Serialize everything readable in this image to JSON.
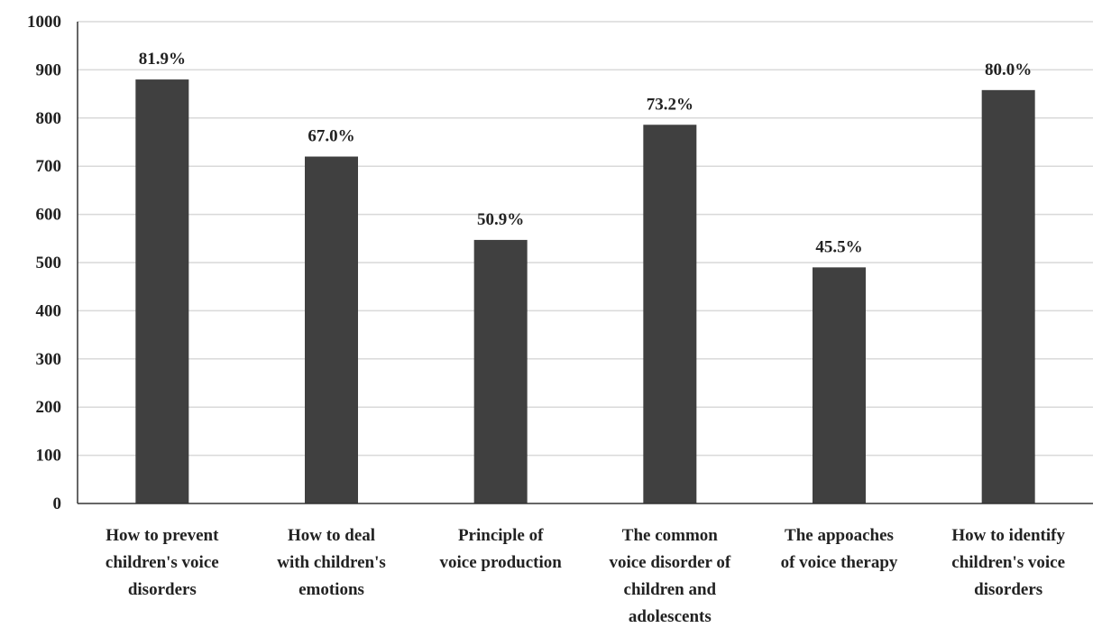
{
  "chart_data": {
    "type": "bar",
    "categories": [
      [
        "How to prevent",
        "children's voice",
        "disorders"
      ],
      [
        "How to deal",
        "with children's",
        "emotions"
      ],
      [
        "Principle of",
        "voice production"
      ],
      [
        "The common",
        "voice disorder of",
        "children and",
        "adolescents"
      ],
      [
        "The appoaches",
        "of voice therapy"
      ],
      [
        "How to identify",
        "children's voice",
        "disorders"
      ]
    ],
    "values": [
      880,
      720,
      547,
      786,
      490,
      858
    ],
    "data_labels": [
      "81.9%",
      "67.0%",
      "50.9%",
      "73.2%",
      "45.5%",
      "80.0%"
    ],
    "ylim": [
      0,
      1000
    ],
    "yticks": [
      0,
      100,
      200,
      300,
      400,
      500,
      600,
      700,
      800,
      900,
      1000
    ],
    "grid": true,
    "bar_color": "#404040",
    "title": "",
    "xlabel": "",
    "ylabel": ""
  }
}
